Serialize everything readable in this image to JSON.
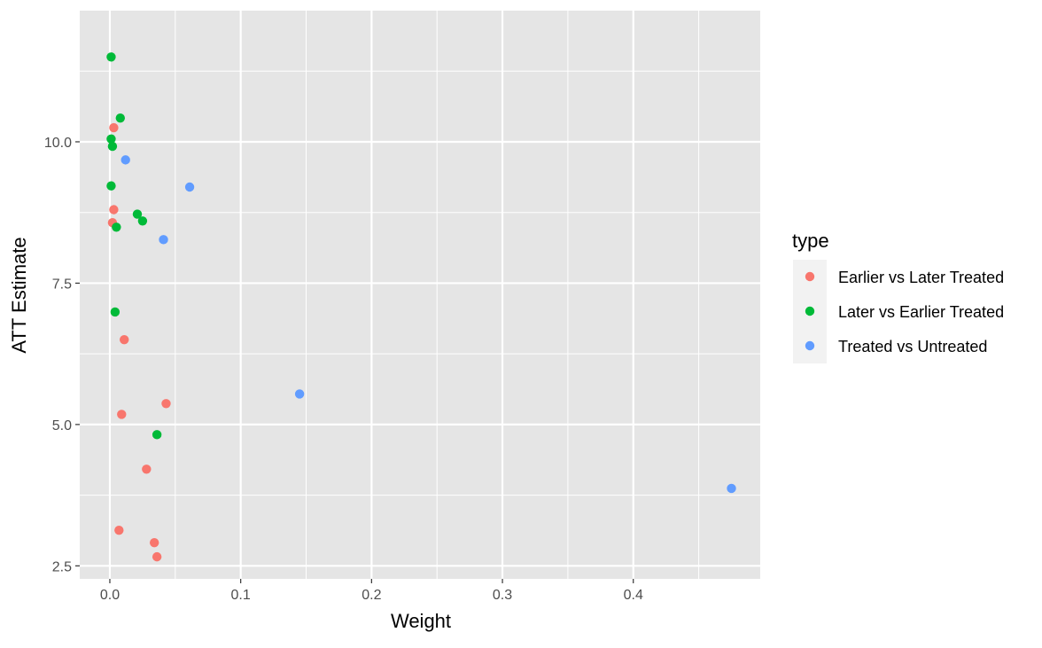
{
  "chart_data": {
    "type": "scatter",
    "title": "",
    "xlabel": "Weight",
    "ylabel": "ATT Estimate",
    "xlim": [
      -0.023,
      0.497
    ],
    "ylim": [
      2.27,
      12.32
    ],
    "xticks": [
      0.0,
      0.1,
      0.2,
      0.3,
      0.4
    ],
    "xtick_labels": [
      "0.0",
      "0.1",
      "0.2",
      "0.3",
      "0.4"
    ],
    "yticks": [
      2.5,
      5.0,
      7.5,
      10.0
    ],
    "ytick_labels": [
      "2.5",
      "5.0",
      "7.5",
      "10.0"
    ],
    "grid": true,
    "panel_background": "#e5e5e5",
    "grid_color": "#ffffff",
    "legend": {
      "title": "type",
      "position": "right"
    },
    "series": [
      {
        "name": "Earlier vs Later Treated",
        "color": "#F8766D",
        "points": [
          {
            "x": 0.003,
            "y": 10.25
          },
          {
            "x": 0.003,
            "y": 8.8
          },
          {
            "x": 0.002,
            "y": 8.57
          },
          {
            "x": 0.011,
            "y": 6.5
          },
          {
            "x": 0.043,
            "y": 5.37
          },
          {
            "x": 0.009,
            "y": 5.18
          },
          {
            "x": 0.028,
            "y": 4.21
          },
          {
            "x": 0.007,
            "y": 3.13
          },
          {
            "x": 0.034,
            "y": 2.91
          },
          {
            "x": 0.036,
            "y": 2.66
          }
        ]
      },
      {
        "name": "Later vs Earlier Treated",
        "color": "#00BA38",
        "points": [
          {
            "x": 0.001,
            "y": 11.5
          },
          {
            "x": 0.008,
            "y": 10.42
          },
          {
            "x": 0.001,
            "y": 10.05
          },
          {
            "x": 0.002,
            "y": 9.92
          },
          {
            "x": 0.001,
            "y": 9.22
          },
          {
            "x": 0.021,
            "y": 8.72
          },
          {
            "x": 0.025,
            "y": 8.6
          },
          {
            "x": 0.005,
            "y": 8.49
          },
          {
            "x": 0.004,
            "y": 6.99
          },
          {
            "x": 0.036,
            "y": 4.82
          }
        ]
      },
      {
        "name": "Treated vs Untreated",
        "color": "#619CFF",
        "points": [
          {
            "x": 0.012,
            "y": 9.68
          },
          {
            "x": 0.061,
            "y": 9.2
          },
          {
            "x": 0.041,
            "y": 8.27
          },
          {
            "x": 0.145,
            "y": 5.54
          },
          {
            "x": 0.475,
            "y": 3.87
          }
        ]
      }
    ]
  }
}
